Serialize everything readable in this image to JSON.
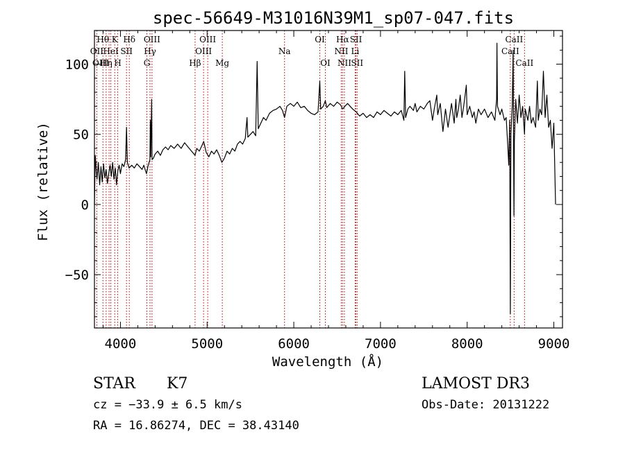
{
  "chart_data": {
    "type": "line",
    "title": "spec-56649-M31016N39M1_sp07-047.fits",
    "xlabel": "Wavelength (Å)",
    "ylabel": "Flux (relative)",
    "xlim": [
      3700,
      9100
    ],
    "ylim": [
      -88,
      124
    ],
    "xticks": [
      4000,
      5000,
      6000,
      7000,
      8000,
      9000
    ],
    "yticks": [
      -50,
      0,
      50,
      100
    ],
    "grid": false,
    "series": [
      {
        "values": [
          [
            3700,
            0
          ],
          [
            3710,
            35
          ],
          [
            3720,
            25
          ],
          [
            3730,
            18
          ],
          [
            3745,
            30
          ],
          [
            3760,
            14
          ],
          [
            3775,
            27
          ],
          [
            3790,
            16
          ],
          [
            3805,
            29
          ],
          [
            3820,
            19
          ],
          [
            3835,
            25
          ],
          [
            3850,
            15
          ],
          [
            3865,
            22
          ],
          [
            3880,
            28
          ],
          [
            3895,
            20
          ],
          [
            3910,
            30
          ],
          [
            3925,
            18
          ],
          [
            3940,
            26
          ],
          [
            3955,
            14
          ],
          [
            3970,
            24
          ],
          [
            3985,
            28
          ],
          [
            4000,
            22
          ],
          [
            4020,
            29
          ],
          [
            4040,
            27
          ],
          [
            4060,
            32
          ],
          [
            4070,
            55
          ],
          [
            4080,
            30
          ],
          [
            4100,
            26
          ],
          [
            4130,
            28
          ],
          [
            4160,
            26
          ],
          [
            4190,
            29
          ],
          [
            4220,
            27
          ],
          [
            4250,
            25
          ],
          [
            4270,
            28
          ],
          [
            4290,
            24
          ],
          [
            4300,
            22
          ],
          [
            4320,
            28
          ],
          [
            4340,
            32
          ],
          [
            4345,
            60
          ],
          [
            4350,
            34
          ],
          [
            4360,
            75
          ],
          [
            4365,
            32
          ],
          [
            4380,
            33
          ],
          [
            4400,
            36
          ],
          [
            4430,
            38
          ],
          [
            4460,
            35
          ],
          [
            4490,
            39
          ],
          [
            4520,
            41
          ],
          [
            4550,
            39
          ],
          [
            4580,
            42
          ],
          [
            4620,
            40
          ],
          [
            4660,
            43
          ],
          [
            4700,
            40
          ],
          [
            4740,
            44
          ],
          [
            4780,
            41
          ],
          [
            4820,
            38
          ],
          [
            4861,
            35
          ],
          [
            4880,
            40
          ],
          [
            4910,
            38
          ],
          [
            4940,
            42
          ],
          [
            4960,
            45
          ],
          [
            4990,
            37
          ],
          [
            5020,
            34
          ],
          [
            5050,
            38
          ],
          [
            5080,
            36
          ],
          [
            5110,
            39
          ],
          [
            5140,
            35
          ],
          [
            5170,
            30
          ],
          [
            5200,
            33
          ],
          [
            5230,
            38
          ],
          [
            5260,
            36
          ],
          [
            5290,
            40
          ],
          [
            5320,
            38
          ],
          [
            5350,
            43
          ],
          [
            5380,
            45
          ],
          [
            5410,
            43
          ],
          [
            5440,
            47
          ],
          [
            5460,
            62
          ],
          [
            5470,
            48
          ],
          [
            5500,
            50
          ],
          [
            5530,
            52
          ],
          [
            5560,
            49
          ],
          [
            5577,
            102
          ],
          [
            5590,
            54
          ],
          [
            5620,
            58
          ],
          [
            5650,
            62
          ],
          [
            5680,
            60
          ],
          [
            5720,
            65
          ],
          [
            5760,
            67
          ],
          [
            5800,
            68
          ],
          [
            5840,
            70
          ],
          [
            5870,
            67
          ],
          [
            5893,
            62
          ],
          [
            5920,
            70
          ],
          [
            5960,
            72
          ],
          [
            6000,
            70
          ],
          [
            6040,
            73
          ],
          [
            6080,
            69
          ],
          [
            6120,
            70
          ],
          [
            6160,
            67
          ],
          [
            6200,
            65
          ],
          [
            6240,
            64
          ],
          [
            6280,
            66
          ],
          [
            6300,
            88
          ],
          [
            6310,
            68
          ],
          [
            6340,
            70
          ],
          [
            6364,
            74
          ],
          [
            6380,
            69
          ],
          [
            6420,
            72
          ],
          [
            6460,
            70
          ],
          [
            6500,
            73
          ],
          [
            6540,
            71
          ],
          [
            6563,
            68
          ],
          [
            6590,
            70
          ],
          [
            6620,
            72
          ],
          [
            6650,
            70
          ],
          [
            6680,
            68
          ],
          [
            6720,
            66
          ],
          [
            6760,
            63
          ],
          [
            6800,
            65
          ],
          [
            6840,
            62
          ],
          [
            6880,
            64
          ],
          [
            6920,
            62
          ],
          [
            6960,
            66
          ],
          [
            7000,
            64
          ],
          [
            7040,
            67
          ],
          [
            7080,
            65
          ],
          [
            7120,
            63
          ],
          [
            7160,
            66
          ],
          [
            7200,
            64
          ],
          [
            7240,
            67
          ],
          [
            7270,
            60
          ],
          [
            7280,
            95
          ],
          [
            7290,
            62
          ],
          [
            7316,
            68
          ],
          [
            7340,
            70
          ],
          [
            7380,
            67
          ],
          [
            7400,
            72
          ],
          [
            7420,
            66
          ],
          [
            7460,
            70
          ],
          [
            7500,
            68
          ],
          [
            7540,
            72
          ],
          [
            7570,
            74
          ],
          [
            7600,
            60
          ],
          [
            7620,
            68
          ],
          [
            7650,
            78
          ],
          [
            7660,
            64
          ],
          [
            7690,
            72
          ],
          [
            7720,
            52
          ],
          [
            7750,
            68
          ],
          [
            7780,
            55
          ],
          [
            7820,
            72
          ],
          [
            7850,
            58
          ],
          [
            7870,
            75
          ],
          [
            7880,
            62
          ],
          [
            7900,
            68
          ],
          [
            7920,
            78
          ],
          [
            7940,
            62
          ],
          [
            7960,
            70
          ],
          [
            7990,
            85
          ],
          [
            8000,
            64
          ],
          [
            8030,
            70
          ],
          [
            8060,
            62
          ],
          [
            8080,
            66
          ],
          [
            8100,
            58
          ],
          [
            8130,
            68
          ],
          [
            8160,
            64
          ],
          [
            8200,
            68
          ],
          [
            8240,
            62
          ],
          [
            8280,
            66
          ],
          [
            8320,
            60
          ],
          [
            8340,
            75
          ],
          [
            8344,
            115
          ],
          [
            8350,
            70
          ],
          [
            8380,
            64
          ],
          [
            8400,
            68
          ],
          [
            8430,
            60
          ],
          [
            8450,
            62
          ],
          [
            8470,
            40
          ],
          [
            8480,
            28
          ],
          [
            8490,
            60
          ],
          [
            8498,
            -78
          ],
          [
            8505,
            50
          ],
          [
            8520,
            70
          ],
          [
            8530,
            110
          ],
          [
            8540,
            -8
          ],
          [
            8545,
            45
          ],
          [
            8560,
            75
          ],
          [
            8580,
            58
          ],
          [
            8600,
            78
          ],
          [
            8620,
            62
          ],
          [
            8640,
            70
          ],
          [
            8662,
            50
          ],
          [
            8670,
            68
          ],
          [
            8700,
            60
          ],
          [
            8720,
            70
          ],
          [
            8740,
            58
          ],
          [
            8760,
            62
          ],
          [
            8790,
            55
          ],
          [
            8810,
            88
          ],
          [
            8820,
            60
          ],
          [
            8840,
            68
          ],
          [
            8860,
            64
          ],
          [
            8880,
            95
          ],
          [
            8900,
            62
          ],
          [
            8920,
            78
          ],
          [
            8940,
            55
          ],
          [
            8960,
            60
          ],
          [
            8980,
            40
          ],
          [
            9000,
            58
          ],
          [
            9020,
            0
          ]
        ]
      }
    ],
    "lines": [
      {
        "label": "Hθ",
        "x": 3798,
        "row": 0,
        "dx": 0
      },
      {
        "label": "OII",
        "x": 3727,
        "row": 1,
        "dx": 0
      },
      {
        "label": "OIII",
        "x": 3869,
        "row": 2,
        "dx": -12
      },
      {
        "label": "K",
        "x": 3934,
        "row": 0,
        "dx": 0
      },
      {
        "label": "HeI",
        "x": 3889,
        "row": 1,
        "dx": 0
      },
      {
        "label": "Hη",
        "x": 3835,
        "row": 2,
        "dx": 0
      },
      {
        "label": "H",
        "x": 3969,
        "row": 2,
        "dx": 0
      },
      {
        "label": "SII",
        "x": 4070,
        "row": 1,
        "dx": 0
      },
      {
        "label": "Hδ",
        "x": 4102,
        "row": 0,
        "dx": 0
      },
      {
        "label": "OIII",
        "x": 4364,
        "row": 0,
        "dx": 0
      },
      {
        "label": "Hγ",
        "x": 4341,
        "row": 1,
        "dx": 0
      },
      {
        "label": "G",
        "x": 4305,
        "row": 2,
        "dx": 0
      },
      {
        "label": "OIII",
        "x": 5007,
        "row": 0,
        "dx": 0
      },
      {
        "label": "OIII",
        "x": 4959,
        "row": 1,
        "dx": 0
      },
      {
        "label": "Hβ",
        "x": 4861,
        "row": 2,
        "dx": 0
      },
      {
        "label": "Mg",
        "x": 5175,
        "row": 2,
        "dx": 0
      },
      {
        "label": "Na",
        "x": 5893,
        "row": 1,
        "dx": 0
      },
      {
        "label": "OI",
        "x": 6300,
        "row": 0,
        "dx": 0
      },
      {
        "label": "OI",
        "x": 6364,
        "row": 2,
        "dx": 0
      },
      {
        "label": "Hα",
        "x": 6563,
        "row": 0,
        "dx": 0
      },
      {
        "label": "SII",
        "x": 6717,
        "row": 0,
        "dx": 0
      },
      {
        "label": "NII",
        "x": 6548,
        "row": 1,
        "dx": 0
      },
      {
        "label": "Li",
        "x": 6708,
        "row": 1,
        "dx": 0
      },
      {
        "label": "NII",
        "x": 6584,
        "row": 2,
        "dx": 0
      },
      {
        "label": "SII",
        "x": 6731,
        "row": 2,
        "dx": 0
      },
      {
        "label": "CaII",
        "x": 8542,
        "row": 0,
        "dx": 0
      },
      {
        "label": "CaII",
        "x": 8498,
        "row": 1,
        "dx": 0
      },
      {
        "label": "CaII",
        "x": 8662,
        "row": 2,
        "dx": 0
      }
    ]
  },
  "info": {
    "class": "STAR",
    "subclass": "K7",
    "cz": "cz = −33.9 ± 6.5 km/s",
    "radec": "RA =  16.86274, DEC =  38.43140",
    "survey": "LAMOST DR3",
    "obsdate": "Obs-Date: 20131222"
  },
  "colors": {
    "line": "#000000",
    "marker": "#b00000"
  }
}
